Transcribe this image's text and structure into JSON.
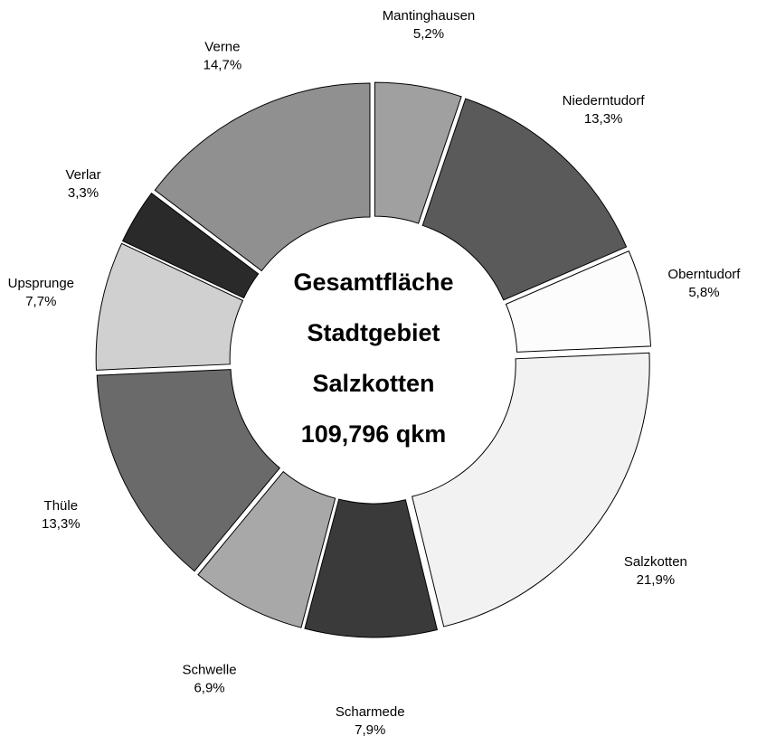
{
  "chart_data": {
    "type": "donut",
    "center_text": [
      "Gesamtfläche",
      "Stadtgebiet",
      "Salzkotten",
      "109,796 qkm"
    ],
    "categories": [
      "Mantinghausen",
      "Niederntudorf",
      "Oberntudorf",
      "Salzkotten",
      "Scharmede",
      "Schwelle",
      "Thüle",
      "Upsprunge",
      "Verlar",
      "Verne"
    ],
    "values": [
      5.2,
      13.3,
      5.8,
      21.9,
      7.9,
      6.9,
      13.3,
      7.7,
      3.3,
      14.7
    ],
    "value_labels": [
      "5,2%",
      "13,3%",
      "5,8%",
      "21,9%",
      "7,9%",
      "6,9%",
      "13,3%",
      "7,7%",
      "3,3%",
      "14,7%"
    ],
    "colors": [
      "#a0a0a0",
      "#5a5a5a",
      "#fcfcfc",
      "#f2f2f2",
      "#3a3a3a",
      "#a8a8a8",
      "#6a6a6a",
      "#d0d0d0",
      "#2a2a2a",
      "#909090"
    ]
  }
}
